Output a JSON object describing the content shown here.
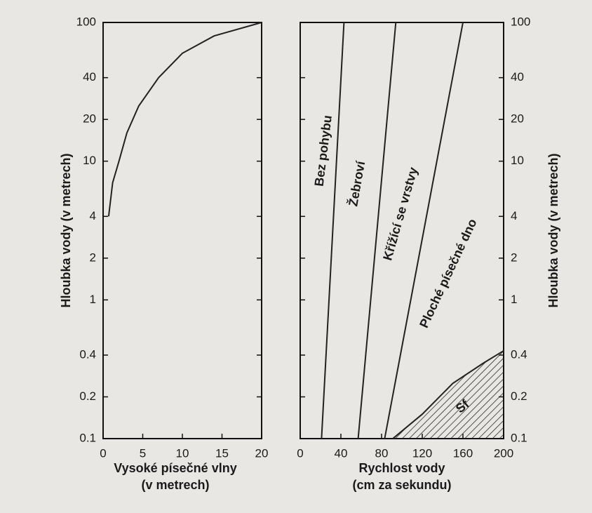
{
  "chart_data": [
    {
      "type": "line",
      "log_y": true,
      "ylabel": "Hloubka vody (v metrech)",
      "xlabel": [
        "Vysoké písečné vlny",
        "(v metrech)"
      ],
      "xlim": [
        0,
        20
      ],
      "xticks": [
        0,
        5,
        10,
        15,
        20
      ],
      "ylim": [
        0.1,
        100
      ],
      "yticks": [
        0.1,
        0.2,
        0.4,
        1,
        2,
        4,
        10,
        20,
        40,
        100
      ],
      "series": [
        {
          "color": "#222222",
          "x": [
            0.7,
            1.2,
            2,
            3,
            4.5,
            7,
            10,
            14,
            20
          ],
          "values": [
            4,
            7,
            10,
            16,
            25,
            40,
            60,
            80,
            100
          ]
        }
      ]
    },
    {
      "type": "line",
      "log_y": true,
      "ylabel": "Hloubka vody (v metrech)",
      "xlabel": [
        "Rychlost vody",
        "(cm za sekundu)"
      ],
      "xlim": [
        0,
        200
      ],
      "xticks": [
        0,
        40,
        80,
        120,
        160,
        200
      ],
      "ylim": [
        0.1,
        100
      ],
      "yticks": [
        0.1,
        0.2,
        0.4,
        1,
        2,
        4,
        10,
        20,
        40,
        100
      ],
      "series": [
        {
          "color": "#222222",
          "x": [
            21,
            43
          ],
          "values": [
            0.1,
            100
          ]
        },
        {
          "color": "#222222",
          "x": [
            57,
            94
          ],
          "values": [
            0.1,
            100
          ]
        },
        {
          "color": "#222222",
          "x": [
            83,
            160
          ],
          "values": [
            0.1,
            100
          ]
        },
        {
          "color": "#222222",
          "x": [
            91,
            120,
            150,
            180,
            200
          ],
          "values": [
            0.1,
            0.15,
            0.25,
            0.35,
            0.43
          ]
        }
      ],
      "annotations": [
        "Bez pohybu",
        "Žebroví",
        "Křížící se vrstvy",
        "Ploché písečné dno",
        "Sf"
      ]
    }
  ]
}
